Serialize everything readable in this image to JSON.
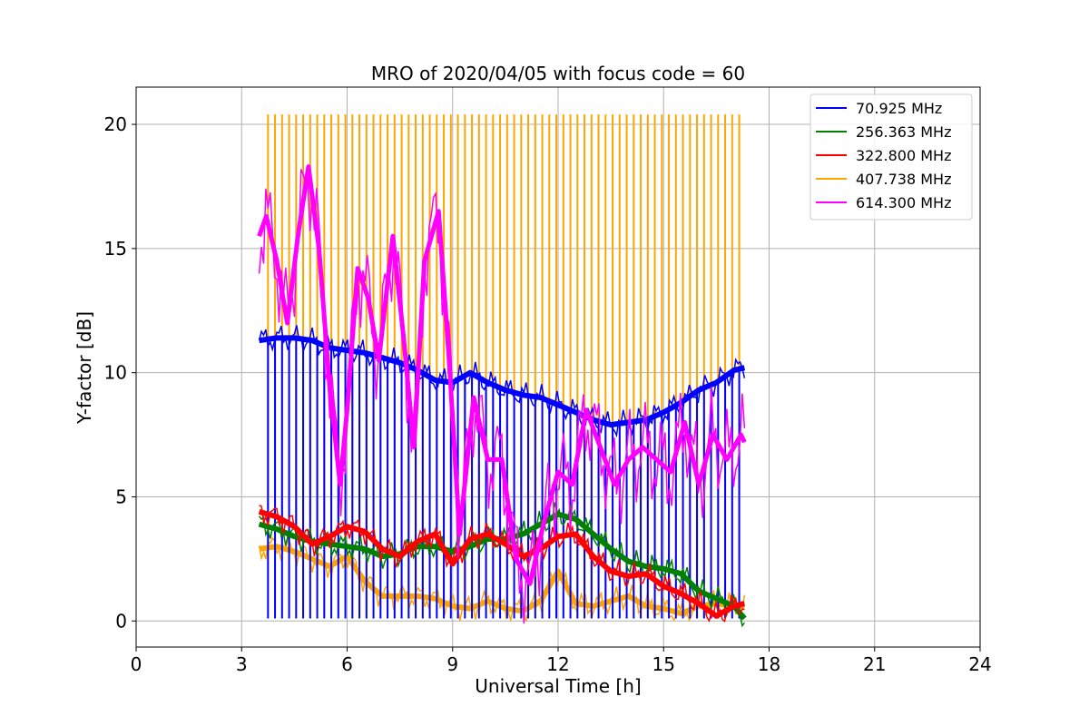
{
  "chart_data": {
    "type": "line",
    "title": "MRO of 2020/04/05 with focus code = 60",
    "xlabel": "Universal Time [h]",
    "ylabel": "Y-factor [dB]",
    "xlim": [
      0,
      24
    ],
    "ylim": [
      -1.05,
      21.5
    ],
    "xticks": [
      0,
      3,
      6,
      9,
      12,
      15,
      18,
      21,
      24
    ],
    "yticks": [
      0,
      5,
      10,
      15,
      20
    ],
    "grid": true,
    "legend_position": "top-right",
    "series": [
      {
        "name": " 70.925 MHz",
        "color": "#0000ff",
        "x": [
          3.5,
          4.0,
          4.5,
          5.0,
          5.5,
          6.0,
          6.5,
          7.0,
          7.5,
          8.0,
          8.5,
          9.0,
          9.5,
          10.0,
          10.5,
          11.0,
          11.5,
          12.0,
          12.5,
          13.0,
          13.5,
          14.0,
          14.5,
          15.0,
          15.5,
          16.0,
          16.5,
          17.0,
          17.3
        ],
        "y": [
          11.3,
          11.4,
          11.4,
          11.3,
          11.0,
          10.9,
          10.8,
          10.6,
          10.4,
          10.1,
          9.7,
          9.6,
          10.0,
          9.6,
          9.3,
          9.1,
          9.0,
          8.7,
          8.4,
          8.1,
          7.9,
          8.0,
          8.1,
          8.4,
          8.8,
          9.3,
          9.6,
          10.1,
          10.2
        ],
        "spike_low": 0.1
      },
      {
        "name": " 256.363 MHz",
        "color": "#008000",
        "x": [
          3.5,
          4.0,
          4.5,
          5.0,
          5.5,
          6.0,
          6.5,
          7.0,
          7.5,
          8.0,
          8.5,
          9.0,
          9.5,
          10.0,
          10.5,
          11.0,
          11.5,
          12.0,
          12.5,
          13.0,
          13.5,
          14.0,
          14.5,
          15.0,
          15.5,
          16.0,
          16.5,
          17.0,
          17.3
        ],
        "y": [
          3.9,
          3.7,
          3.4,
          3.2,
          3.1,
          3.0,
          2.9,
          2.6,
          2.7,
          3.0,
          3.0,
          2.8,
          3.0,
          3.3,
          3.3,
          3.5,
          3.9,
          4.3,
          4.1,
          3.5,
          2.9,
          2.4,
          2.2,
          2.1,
          1.9,
          1.2,
          0.9,
          0.6,
          0.1
        ]
      },
      {
        "name": " 322.800 MHz",
        "color": "#ff0000",
        "x": [
          3.5,
          4.0,
          4.5,
          5.0,
          5.5,
          6.0,
          6.5,
          7.0,
          7.5,
          8.0,
          8.5,
          9.0,
          9.5,
          10.0,
          10.5,
          11.0,
          11.5,
          12.0,
          12.5,
          13.0,
          13.5,
          14.0,
          14.5,
          15.0,
          15.5,
          16.0,
          16.5,
          17.0,
          17.3
        ],
        "y": [
          4.4,
          4.2,
          3.8,
          3.1,
          3.4,
          3.8,
          3.6,
          2.9,
          2.6,
          3.2,
          3.5,
          2.3,
          3.3,
          3.5,
          3.1,
          2.6,
          2.9,
          3.4,
          3.5,
          2.6,
          2.0,
          1.8,
          1.9,
          1.4,
          1.1,
          0.7,
          0.2,
          0.6,
          0.7
        ]
      },
      {
        "name": " 407.738 MHz",
        "color": "#ffa500",
        "x": [
          3.5,
          4.0,
          4.5,
          5.0,
          5.5,
          6.0,
          6.5,
          7.0,
          7.5,
          8.0,
          8.5,
          9.0,
          9.5,
          10.0,
          10.5,
          11.0,
          11.5,
          12.0,
          12.5,
          13.0,
          13.5,
          14.0,
          14.5,
          15.0,
          15.5,
          16.0,
          16.5,
          17.0,
          17.3
        ],
        "y": [
          2.9,
          3.0,
          2.8,
          2.5,
          2.2,
          2.6,
          1.6,
          1.0,
          1.0,
          1.0,
          0.9,
          0.6,
          0.5,
          0.8,
          0.5,
          0.4,
          0.8,
          2.0,
          0.7,
          0.6,
          0.8,
          1.0,
          0.6,
          0.5,
          0.3,
          0.6,
          0.7,
          0.6,
          0.6
        ],
        "spike_high": 20.4
      },
      {
        "name": " 614.300 MHz",
        "color": "#ff00ff",
        "x": [
          3.5,
          3.7,
          4.0,
          4.3,
          4.6,
          4.9,
          5.2,
          5.5,
          5.8,
          6.0,
          6.3,
          6.6,
          6.9,
          7.3,
          7.6,
          7.9,
          8.2,
          8.6,
          8.9,
          9.2,
          9.6,
          10.0,
          10.4,
          10.8,
          11.2,
          11.6,
          12.0,
          12.4,
          12.8,
          13.2,
          13.6,
          14.0,
          14.4,
          14.8,
          15.2,
          15.6,
          16.0,
          16.4,
          16.8,
          17.2,
          17.3
        ],
        "y": [
          15.5,
          16.3,
          14.5,
          12.0,
          15.5,
          18.3,
          15.0,
          9.5,
          5.5,
          8.5,
          14.2,
          13.0,
          10.5,
          15.5,
          11.5,
          7.0,
          14.5,
          16.5,
          10.5,
          3.5,
          9.0,
          6.5,
          6.5,
          2.5,
          1.5,
          4.0,
          6.0,
          5.5,
          8.5,
          7.0,
          5.5,
          6.5,
          7.0,
          6.5,
          6.0,
          8.0,
          5.5,
          7.5,
          6.5,
          7.5,
          7.2
        ]
      }
    ]
  }
}
